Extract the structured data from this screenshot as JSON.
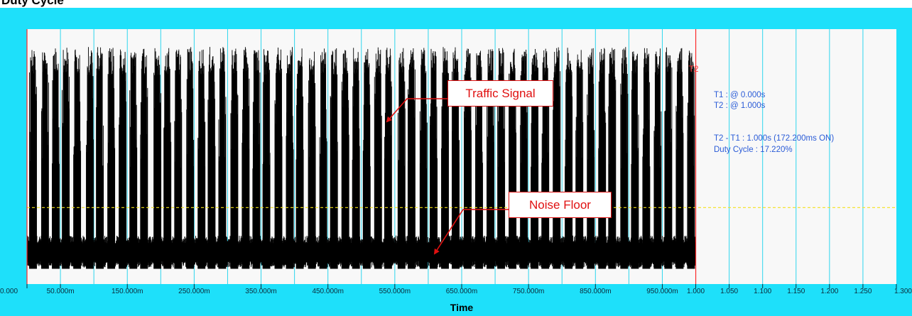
{
  "title": "Duty Cycle",
  "colors": {
    "panel_bg": "#1ee0fa",
    "plot_bg": "#f8f8f8",
    "grid": "#2ed6ee",
    "signal": "#000000",
    "cursor": "#ff2a2a",
    "threshold": "#f3e21a",
    "info_text": "#2a5bd7",
    "callout": "#e01010"
  },
  "cursor_info": {
    "t1": "T1 : @ 0.000s",
    "t2": "T2 : @ 1.000s",
    "delta": "T2 - T1 : 1.000s (172.200ms ON)",
    "duty": "Duty Cycle : 17.220%"
  },
  "cursor_tags": {
    "t2": "T2"
  },
  "annotations": {
    "traffic": "Traffic Signal",
    "noise": "Noise Floor"
  },
  "chart_data": {
    "type": "line",
    "xlabel": "Time",
    "ylabel": "",
    "xlim": [
      0,
      1.3
    ],
    "x_ticks": [
      {
        "value": 0.0,
        "label": "0.000"
      },
      {
        "value": 0.05,
        "label": "50.000m"
      },
      {
        "value": 0.15,
        "label": "150.000m"
      },
      {
        "value": 0.25,
        "label": "250.000m"
      },
      {
        "value": 0.35,
        "label": "350.000m"
      },
      {
        "value": 0.45,
        "label": "450.000m"
      },
      {
        "value": 0.55,
        "label": "550.000m"
      },
      {
        "value": 0.65,
        "label": "650.000m"
      },
      {
        "value": 0.75,
        "label": "750.000m"
      },
      {
        "value": 0.85,
        "label": "850.000m"
      },
      {
        "value": 0.95,
        "label": "950.000m"
      },
      {
        "value": 1.0,
        "label": "1.000"
      },
      {
        "value": 1.05,
        "label": "1.050"
      },
      {
        "value": 1.1,
        "label": "1.100"
      },
      {
        "value": 1.15,
        "label": "1.150"
      },
      {
        "value": 1.2,
        "label": "1.200"
      },
      {
        "value": 1.25,
        "label": "1.250"
      },
      {
        "value": 1.3,
        "label": "1.300"
      }
    ],
    "grid": true,
    "cursors": [
      {
        "name": "T1",
        "t": 0.0
      },
      {
        "name": "T2",
        "t": 1.0
      }
    ],
    "threshold_level": 0.3,
    "noise_floor_level": 0.125,
    "signal_end": 1.0,
    "on_time_s": 0.1722,
    "duty_cycle_pct": 17.22,
    "burst_times": [
      0.009,
      0.027,
      0.043,
      0.058,
      0.075,
      0.094,
      0.109,
      0.126,
      0.143,
      0.159,
      0.175,
      0.195,
      0.21,
      0.226,
      0.244,
      0.261,
      0.276,
      0.292,
      0.31,
      0.327,
      0.343,
      0.358,
      0.376,
      0.393,
      0.408,
      0.426,
      0.443,
      0.459,
      0.476,
      0.492,
      0.508,
      0.525,
      0.54,
      0.56,
      0.575,
      0.593,
      0.608,
      0.625,
      0.641,
      0.659,
      0.676,
      0.693,
      0.709,
      0.726,
      0.743,
      0.759,
      0.775,
      0.792,
      0.81,
      0.826,
      0.843,
      0.86,
      0.875,
      0.893,
      0.909,
      0.926,
      0.943,
      0.959,
      0.976,
      0.993
    ]
  }
}
